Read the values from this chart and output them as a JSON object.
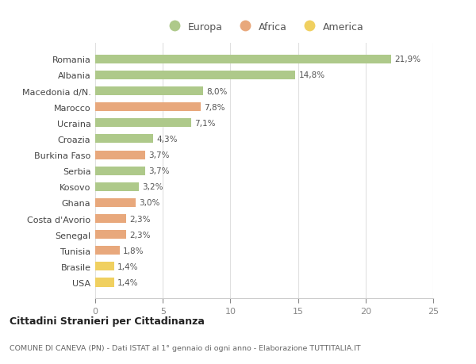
{
  "categories": [
    "Romania",
    "Albania",
    "Macedonia d/N.",
    "Marocco",
    "Ucraina",
    "Croazia",
    "Burkina Faso",
    "Serbia",
    "Kosovo",
    "Ghana",
    "Costa d'Avorio",
    "Senegal",
    "Tunisia",
    "Brasile",
    "USA"
  ],
  "values": [
    21.9,
    14.8,
    8.0,
    7.8,
    7.1,
    4.3,
    3.7,
    3.7,
    3.2,
    3.0,
    2.3,
    2.3,
    1.8,
    1.4,
    1.4
  ],
  "labels": [
    "21,9%",
    "14,8%",
    "8,0%",
    "7,8%",
    "7,1%",
    "4,3%",
    "3,7%",
    "3,7%",
    "3,2%",
    "3,0%",
    "2,3%",
    "2,3%",
    "1,8%",
    "1,4%",
    "1,4%"
  ],
  "continent": [
    "Europa",
    "Europa",
    "Europa",
    "Africa",
    "Europa",
    "Europa",
    "Africa",
    "Europa",
    "Europa",
    "Africa",
    "Africa",
    "Africa",
    "Africa",
    "America",
    "America"
  ],
  "colors": {
    "Europa": "#aec98a",
    "Africa": "#e8a87c",
    "America": "#f0d060"
  },
  "legend_order": [
    "Europa",
    "Africa",
    "America"
  ],
  "title": "Cittadini Stranieri per Cittadinanza",
  "subtitle": "COMUNE DI CANEVA (PN) - Dati ISTAT al 1° gennaio di ogni anno - Elaborazione TUTTITALIA.IT",
  "xlim": [
    0,
    25
  ],
  "xticks": [
    0,
    5,
    10,
    15,
    20,
    25
  ],
  "background_color": "#ffffff",
  "grid_color": "#e0e0e0",
  "bar_height": 0.55,
  "figsize": [
    6.0,
    4.6
  ],
  "dpi": 100
}
